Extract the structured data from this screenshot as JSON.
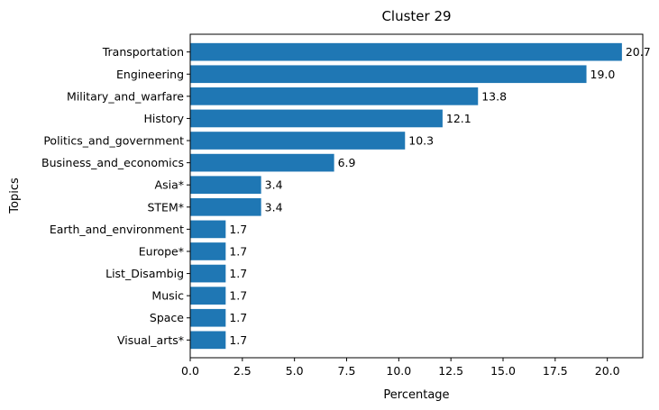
{
  "chart_data": {
    "type": "bar",
    "orientation": "horizontal",
    "title": "Cluster 29",
    "xlabel": "Percentage",
    "ylabel": "Topics",
    "bar_color": "#1f77b4",
    "xlim": [
      0,
      21.7
    ],
    "xticks": [
      0.0,
      2.5,
      5.0,
      7.5,
      10.0,
      12.5,
      15.0,
      17.5,
      20.0
    ],
    "xtick_labels": [
      "0.0",
      "2.5",
      "5.0",
      "7.5",
      "10.0",
      "12.5",
      "15.0",
      "17.5",
      "20.0"
    ],
    "categories": [
      "Transportation",
      "Engineering",
      "Military_and_warfare",
      "History",
      "Politics_and_government",
      "Business_and_economics",
      "Asia*",
      "STEM*",
      "Earth_and_environment",
      "Europe*",
      "List_Disambig",
      "Music",
      "Space",
      "Visual_arts*"
    ],
    "values": [
      20.7,
      19.0,
      13.8,
      12.1,
      10.3,
      6.9,
      3.4,
      3.4,
      1.7,
      1.7,
      1.7,
      1.7,
      1.7,
      1.7
    ],
    "value_labels": [
      "20.7",
      "19.0",
      "13.8",
      "12.1",
      "10.3",
      "6.9",
      "3.4",
      "3.4",
      "1.7",
      "1.7",
      "1.7",
      "1.7",
      "1.7",
      "1.7"
    ],
    "grid": false
  }
}
